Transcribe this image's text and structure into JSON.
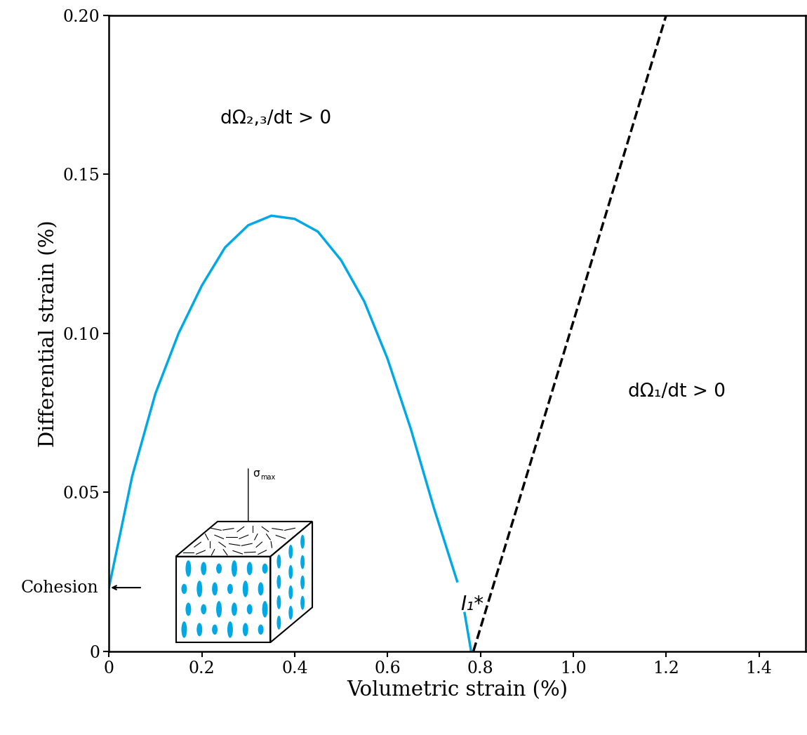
{
  "chart_data": {
    "type": "line",
    "xlabel": "Volumetric strain (%)",
    "ylabel": "Differential strain (%)",
    "xlim": [
      0,
      1.5
    ],
    "xticks": [
      0,
      0.2,
      0.4,
      0.6,
      0.8,
      {
        "value": 1.0,
        "label": "1.0"
      },
      1.2,
      1.4
    ],
    "ylim": [
      0,
      0.2
    ],
    "yticks": [
      0,
      0.05,
      {
        "value": 0.1,
        "label": "0.10"
      },
      0.15,
      {
        "value": 0.2,
        "label": "0.20"
      }
    ],
    "series": [
      {
        "name": "Ω₁",
        "color": "#00a9e6",
        "line_style": "solid",
        "x": [
          0,
          0.05,
          0.1,
          0.15,
          0.2,
          0.25,
          0.3,
          0.35,
          0.4,
          0.45,
          0.5,
          0.55,
          0.6,
          0.65,
          0.7,
          0.75,
          0.757,
          0.766,
          0.78
        ],
        "values": [
          0.02,
          0.055,
          0.081,
          0.1,
          0.115,
          0.127,
          0.134,
          0.137,
          0.136,
          0.132,
          0.123,
          0.11,
          0.092,
          0.07,
          0.045,
          0.022,
          null,
          0.012,
          0.0
        ]
      },
      {
        "name": "I₁*",
        "color": "#000000",
        "line_style": "dashed",
        "x": [
          0.785,
          1.2
        ],
        "values": [
          0,
          0.2
        ]
      }
    ],
    "annotations": {
      "region_upper": "dΩ₂,₃/dt > 0",
      "region_right": "dΩ₁/dt > 0",
      "cohesion": {
        "label": "Cohesion",
        "value": 0.02
      },
      "stress": {
        "symbol": "σ",
        "subscript": "max"
      }
    }
  }
}
